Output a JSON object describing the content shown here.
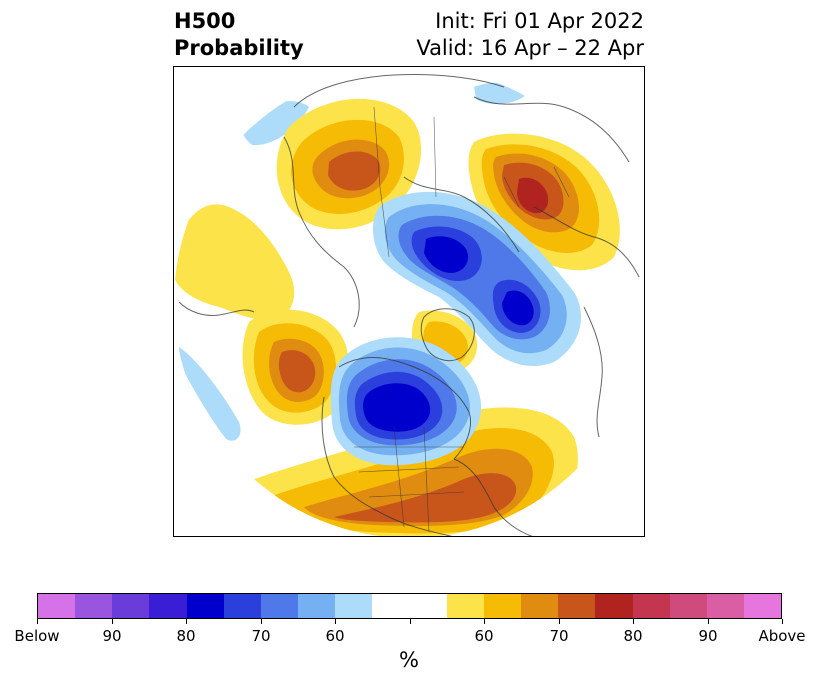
{
  "header": {
    "title_line1": "H500",
    "title_line2": "Probability",
    "init_text": "Init: Fri 01 Apr 2022",
    "valid_text": "Valid: 16 Apr – 22 Apr"
  },
  "colorbar": {
    "label": "%",
    "tick_labels": [
      "Below",
      "90",
      "80",
      "70",
      "60",
      "",
      "60",
      "70",
      "80",
      "90",
      "Above"
    ],
    "colors": [
      "#d672e8",
      "#9a55e0",
      "#6a3ddb",
      "#3a1ed6",
      "#0000cd",
      "#2a3fdc",
      "#4f78e8",
      "#74b0f2",
      "#addcfa",
      "#ffffff",
      "#ffffff",
      "#fde34a",
      "#f5bb05",
      "#e08c10",
      "#c8561b",
      "#b1231e",
      "#c43550",
      "#cf4b7e",
      "#d95ea4",
      "#e676de"
    ]
  }
}
